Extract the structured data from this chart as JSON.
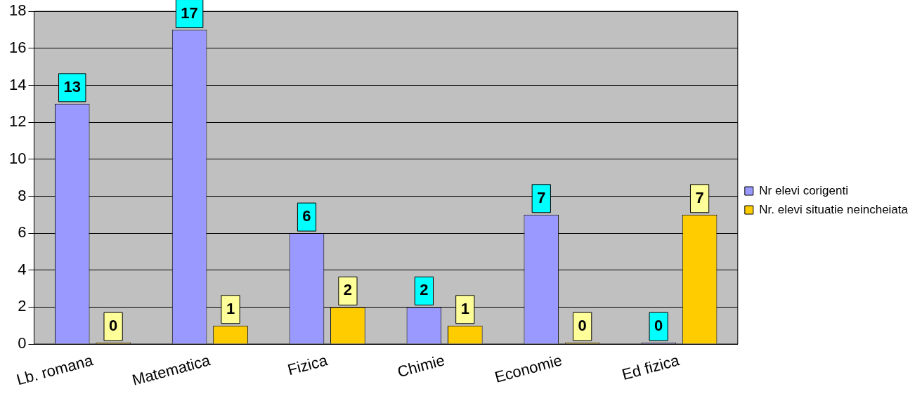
{
  "chart_data": {
    "type": "bar",
    "categories": [
      "Lb. romana",
      "Matematica",
      "Fizica",
      "Chimie",
      "Economie",
      "Ed fizica"
    ],
    "series": [
      {
        "name": "Nr elevi corigenti",
        "color": "#9999ff",
        "values": [
          13,
          17,
          6,
          2,
          7,
          0
        ]
      },
      {
        "name": "Nr. elevi situatie neincheiata",
        "color": "#ffcc00",
        "values": [
          0,
          1,
          2,
          1,
          0,
          7
        ]
      }
    ],
    "ylim": [
      0,
      18
    ],
    "yticks": [
      0,
      2,
      4,
      6,
      8,
      10,
      12,
      14,
      16,
      18
    ],
    "grid": "y",
    "legend": "right",
    "data_labels": true
  }
}
